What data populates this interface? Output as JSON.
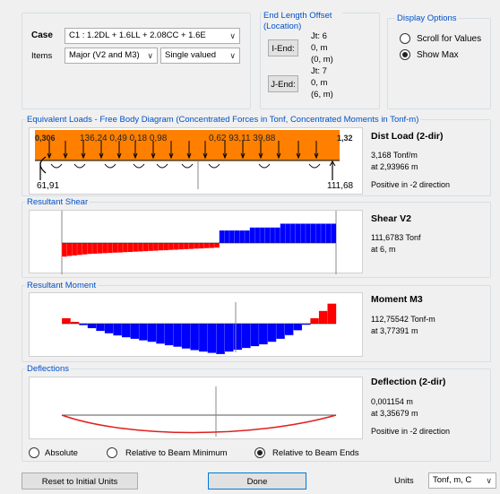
{
  "header": {
    "case_label": "Case",
    "case_value": "C1 : 1.2DL + 1.6LL + 2.08CC + 1.6E",
    "items_label": "Items",
    "items_value": "Major (V2 and M3)",
    "valued_value": "Single valued"
  },
  "end_offset": {
    "title": "End Length Offset (Location)",
    "iend_button": "I-End:",
    "jend_button": "J-End:",
    "i_jt": "Jt: 6",
    "i_off": "0, m",
    "i_loc": "(0, m)",
    "j_jt": "Jt: 7",
    "j_off": "0, m",
    "j_loc": "(6, m)"
  },
  "display_options": {
    "title": "Display Options",
    "scroll_label": "Scroll for Values",
    "show_max_label": "Show Max",
    "selected": "Show Max"
  },
  "equiv_loads": {
    "title": "Equivalent Loads - Free Body Diagram  (Concentrated Forces in Tonf, Concentrated Moments in Tonf-m)",
    "left_reaction": "61,91",
    "right_reaction": "111,68",
    "top_text_left": "0,306",
    "top_values": "136,24 0,49 0,18  0,98",
    "top_values2": "0,62    93,11    39,88",
    "top_text_right": "1,32",
    "info_title": "Dist Load (2-dir)",
    "info_value": "3,168 Tonf/m",
    "info_at": "at 2,93966 m",
    "info_dir": "Positive in -2 direction",
    "fill_color": "#ff8000"
  },
  "shear": {
    "title": "Resultant Shear",
    "info_title": "Shear V2",
    "info_value": "111,6783 Tonf",
    "info_at": "at 6, m",
    "neg_color": "#ff0000",
    "pos_color": "#0000ff",
    "values": [
      -0.55,
      -0.52,
      -0.5,
      -0.48,
      -0.46,
      -0.44,
      -0.43,
      -0.42,
      -0.41,
      -0.4,
      -0.39,
      -0.38,
      -0.37,
      -0.36,
      -0.35,
      -0.34,
      -0.33,
      -0.32,
      -0.31,
      -0.3,
      -0.29,
      -0.28,
      -0.27,
      -0.26,
      -0.25,
      -0.24,
      -0.23,
      -0.22,
      -0.21,
      -0.2,
      -0.19,
      0.5,
      0.5,
      0.5,
      0.5,
      0.5,
      0.5,
      0.62,
      0.62,
      0.62,
      0.62,
      0.62,
      0.62,
      0.77,
      0.77,
      0.77,
      0.77,
      0.77,
      0.77,
      0.77,
      0.77,
      0.77,
      0.77,
      0.77
    ]
  },
  "moment": {
    "title": "Resultant Moment",
    "info_title": "Moment M3",
    "info_value": "112,75542 Tonf-m",
    "info_at": "at 3,77391 m",
    "values": [
      0.18,
      0.06,
      -0.05,
      -0.15,
      -0.24,
      -0.32,
      -0.39,
      -0.45,
      -0.5,
      -0.55,
      -0.6,
      -0.66,
      -0.71,
      -0.76,
      -0.82,
      -0.87,
      -0.92,
      -0.96,
      -1.0,
      -0.92,
      -0.86,
      -0.8,
      -0.74,
      -0.68,
      -0.6,
      -0.5,
      -0.38,
      -0.22,
      -0.04,
      0.18,
      0.42,
      0.66
    ]
  },
  "deflection": {
    "title": "Deflections",
    "info_title": "Deflection (2-dir)",
    "info_value": "0,001154 m",
    "info_at": "at 3,35679 m",
    "info_dir": "Positive in -2 direction",
    "curve_color": "#e02020",
    "options": [
      "Absolute",
      "Relative to Beam Minimum",
      "Relative to Beam Ends"
    ],
    "selected": "Relative to Beam Ends"
  },
  "footer": {
    "reset_button": "Reset to Initial Units",
    "done_button": "Done",
    "units_label": "Units",
    "units_value": "Tonf, m, C"
  }
}
